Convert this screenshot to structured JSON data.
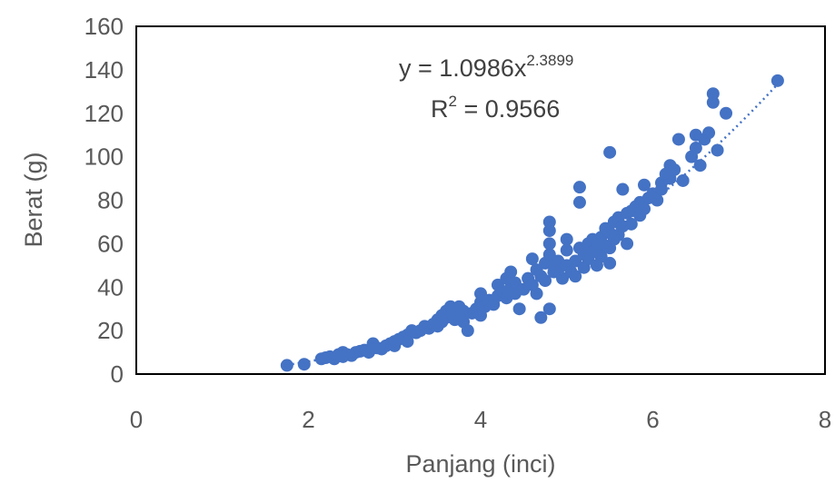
{
  "chart_data": {
    "type": "scatter",
    "xlabel": "Panjang (inci)",
    "ylabel": "Berat (g)",
    "xlim": [
      0,
      8
    ],
    "ylim": [
      0,
      160
    ],
    "x_ticks": [
      "0",
      "2",
      "4",
      "6",
      "8"
    ],
    "y_ticks": [
      "0",
      "20",
      "40",
      "60",
      "80",
      "100",
      "120",
      "140",
      "160"
    ],
    "grid": false,
    "marker_color": "#4472C4",
    "trendline": {
      "type": "power",
      "coefficient": 1.0986,
      "exponent": 2.3899,
      "style": "dotted",
      "x_range": [
        1.75,
        7.45
      ]
    },
    "equation_text": "y = 1.0986x",
    "equation_exponent": "2.3899",
    "r2_base": "R",
    "r2_sup": "2",
    "r2_value": " = 0.9566",
    "points": [
      [
        1.75,
        4
      ],
      [
        1.95,
        4.5
      ],
      [
        2.15,
        7
      ],
      [
        2.2,
        7.5
      ],
      [
        2.25,
        8
      ],
      [
        2.3,
        7
      ],
      [
        2.35,
        9
      ],
      [
        2.4,
        10
      ],
      [
        2.4,
        8
      ],
      [
        2.45,
        9
      ],
      [
        2.5,
        8.5
      ],
      [
        2.55,
        10
      ],
      [
        2.6,
        10.5
      ],
      [
        2.65,
        11
      ],
      [
        2.7,
        10
      ],
      [
        2.75,
        12
      ],
      [
        2.75,
        14
      ],
      [
        2.8,
        12
      ],
      [
        2.85,
        11.5
      ],
      [
        2.9,
        13
      ],
      [
        2.95,
        14
      ],
      [
        3.0,
        15
      ],
      [
        3.0,
        13
      ],
      [
        3.05,
        16
      ],
      [
        3.1,
        17
      ],
      [
        3.15,
        18
      ],
      [
        3.15,
        15
      ],
      [
        3.2,
        20
      ],
      [
        3.25,
        19
      ],
      [
        3.3,
        20
      ],
      [
        3.35,
        22
      ],
      [
        3.4,
        21
      ],
      [
        3.45,
        23
      ],
      [
        3.5,
        25
      ],
      [
        3.5,
        22
      ],
      [
        3.55,
        24
      ],
      [
        3.55,
        27
      ],
      [
        3.6,
        26
      ],
      [
        3.6,
        29
      ],
      [
        3.65,
        28
      ],
      [
        3.65,
        31
      ],
      [
        3.7,
        30
      ],
      [
        3.7,
        25
      ],
      [
        3.75,
        27
      ],
      [
        3.75,
        31
      ],
      [
        3.8,
        29
      ],
      [
        3.8,
        24
      ],
      [
        3.85,
        20
      ],
      [
        3.9,
        28
      ],
      [
        3.95,
        30
      ],
      [
        4.0,
        33
      ],
      [
        4.0,
        37
      ],
      [
        4.0,
        27
      ],
      [
        4.05,
        31
      ],
      [
        4.1,
        34
      ],
      [
        4.15,
        32
      ],
      [
        4.2,
        36
      ],
      [
        4.2,
        41
      ],
      [
        4.25,
        38
      ],
      [
        4.3,
        44
      ],
      [
        4.3,
        35
      ],
      [
        4.35,
        47
      ],
      [
        4.35,
        40
      ],
      [
        4.4,
        42
      ],
      [
        4.4,
        37
      ],
      [
        4.45,
        30
      ],
      [
        4.5,
        39
      ],
      [
        4.55,
        44
      ],
      [
        4.6,
        41
      ],
      [
        4.6,
        53
      ],
      [
        4.65,
        48
      ],
      [
        4.65,
        37
      ],
      [
        4.7,
        45
      ],
      [
        4.7,
        26
      ],
      [
        4.75,
        51
      ],
      [
        4.75,
        43
      ],
      [
        4.8,
        70
      ],
      [
        4.8,
        66
      ],
      [
        4.8,
        60
      ],
      [
        4.8,
        55
      ],
      [
        4.8,
        30
      ],
      [
        4.85,
        47
      ],
      [
        4.85,
        50
      ],
      [
        4.9,
        52
      ],
      [
        4.9,
        48
      ],
      [
        4.95,
        44
      ],
      [
        5.0,
        62
      ],
      [
        5.0,
        57
      ],
      [
        5.0,
        50
      ],
      [
        5.05,
        47
      ],
      [
        5.1,
        52
      ],
      [
        5.1,
        45
      ],
      [
        5.15,
        86
      ],
      [
        5.15,
        79
      ],
      [
        5.15,
        58
      ],
      [
        5.2,
        55
      ],
      [
        5.2,
        49
      ],
      [
        5.25,
        60
      ],
      [
        5.25,
        53
      ],
      [
        5.3,
        56
      ],
      [
        5.3,
        62
      ],
      [
        5.35,
        58
      ],
      [
        5.35,
        50
      ],
      [
        5.4,
        63
      ],
      [
        5.4,
        54
      ],
      [
        5.45,
        67
      ],
      [
        5.45,
        59
      ],
      [
        5.5,
        102
      ],
      [
        5.5,
        65
      ],
      [
        5.5,
        58
      ],
      [
        5.5,
        51
      ],
      [
        5.55,
        70
      ],
      [
        5.55,
        62
      ],
      [
        5.6,
        72
      ],
      [
        5.6,
        64
      ],
      [
        5.65,
        85
      ],
      [
        5.65,
        68
      ],
      [
        5.7,
        74
      ],
      [
        5.7,
        60
      ],
      [
        5.75,
        75
      ],
      [
        5.75,
        69
      ],
      [
        5.8,
        77
      ],
      [
        5.85,
        73
      ],
      [
        5.85,
        79
      ],
      [
        5.9,
        76
      ],
      [
        5.9,
        87
      ],
      [
        5.95,
        81
      ],
      [
        6.0,
        83
      ],
      [
        6.05,
        80
      ],
      [
        6.1,
        88
      ],
      [
        6.1,
        85
      ],
      [
        6.15,
        92
      ],
      [
        6.2,
        96
      ],
      [
        6.2,
        90
      ],
      [
        6.25,
        94
      ],
      [
        6.3,
        108
      ],
      [
        6.35,
        89
      ],
      [
        6.45,
        100
      ],
      [
        6.5,
        104
      ],
      [
        6.5,
        110
      ],
      [
        6.55,
        96
      ],
      [
        6.6,
        108
      ],
      [
        6.65,
        111
      ],
      [
        6.7,
        129
      ],
      [
        6.7,
        125
      ],
      [
        6.75,
        103
      ],
      [
        6.85,
        120
      ],
      [
        7.45,
        135
      ]
    ]
  }
}
